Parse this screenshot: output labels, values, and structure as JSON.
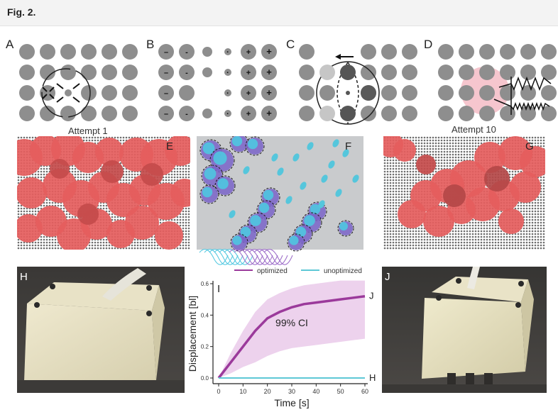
{
  "figure": {
    "title": "Fig. 2."
  },
  "panels": {
    "A": "A",
    "B": "B",
    "C": "C",
    "D": "D",
    "E": "E",
    "F": "F",
    "G": "G",
    "H": "H",
    "I": "I",
    "J": "J"
  },
  "attempts": {
    "first": "Attempt 1",
    "last": "Attempt 10"
  },
  "charge_signs": {
    "minus": "–",
    "small_minus": "-",
    "dot": "·",
    "plus": "+"
  },
  "chart_data": {
    "type": "line",
    "xlabel": "Time [s]",
    "ylabel": "Displacement [bl]",
    "xlim": [
      0,
      60
    ],
    "ylim": [
      0,
      0.6
    ],
    "xticks": [
      "0",
      "10",
      "20",
      "30",
      "40",
      "50",
      "60"
    ],
    "yticks": [
      "0.0",
      "0.2",
      "0.4",
      "0.6"
    ],
    "annotation": "99% CI",
    "legend_position": "top",
    "series": [
      {
        "name": "optimized",
        "color": "#9b3a9b",
        "end_label": "J",
        "x": [
          0,
          5,
          10,
          15,
          20,
          25,
          30,
          35,
          40,
          45,
          50,
          55,
          60
        ],
        "y": [
          0.0,
          0.1,
          0.2,
          0.3,
          0.38,
          0.42,
          0.45,
          0.47,
          0.48,
          0.49,
          0.5,
          0.51,
          0.52
        ],
        "ci_upper": [
          0.0,
          0.16,
          0.3,
          0.42,
          0.5,
          0.54,
          0.57,
          0.59,
          0.6,
          0.61,
          0.62,
          0.62,
          0.62
        ],
        "ci_lower": [
          0.0,
          0.03,
          0.07,
          0.1,
          0.14,
          0.17,
          0.19,
          0.2,
          0.21,
          0.22,
          0.23,
          0.24,
          0.25
        ]
      },
      {
        "name": "unoptimized",
        "color": "#5ec8d6",
        "end_label": "H",
        "x": [
          0,
          60
        ],
        "y": [
          0.0,
          0.0
        ]
      }
    ]
  }
}
